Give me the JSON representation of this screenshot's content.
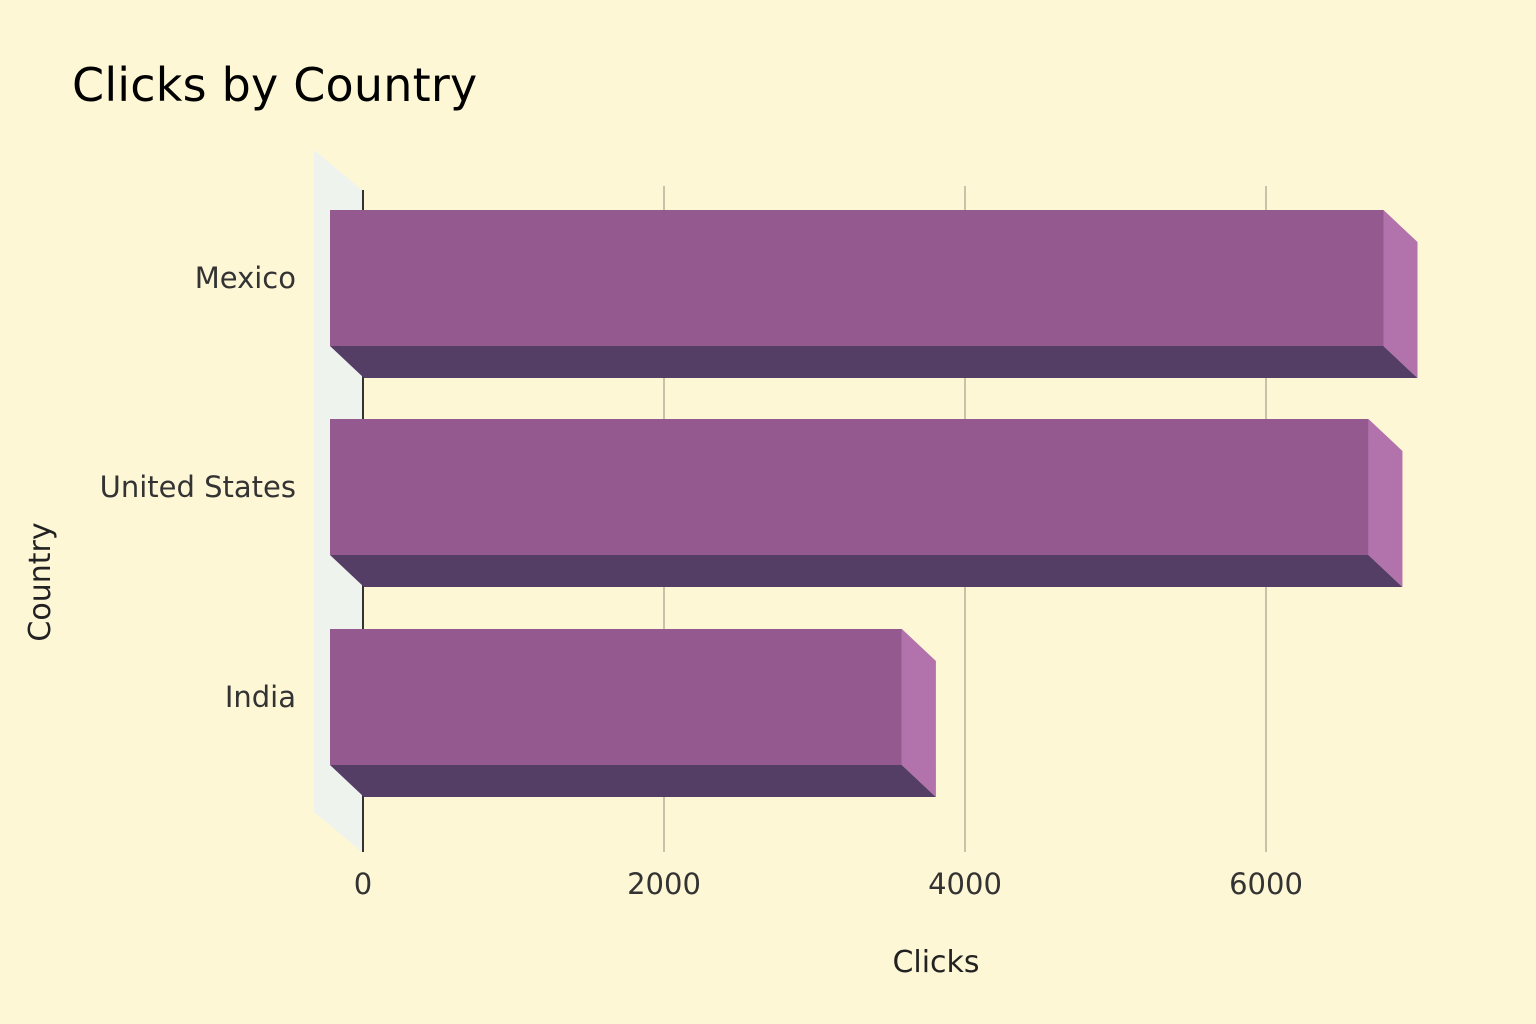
{
  "chart_data": {
    "type": "bar",
    "orientation": "horizontal",
    "title": "Clicks by Country",
    "xlabel": "Clicks",
    "ylabel": "Country",
    "categories": [
      "Mexico",
      "United States",
      "India"
    ],
    "values": [
      7000,
      6900,
      3800
    ],
    "xlim": [
      0,
      7000
    ],
    "xticks": [
      0,
      2000,
      4000,
      6000
    ],
    "grid": true,
    "legend": "none",
    "colors": {
      "bar_front": "#94598f",
      "bar_bottom": "#553e66",
      "bar_side": "#b272ab",
      "grid": "#b5b09a",
      "wall": "#eef3ee",
      "background": "#fef7d6"
    }
  }
}
